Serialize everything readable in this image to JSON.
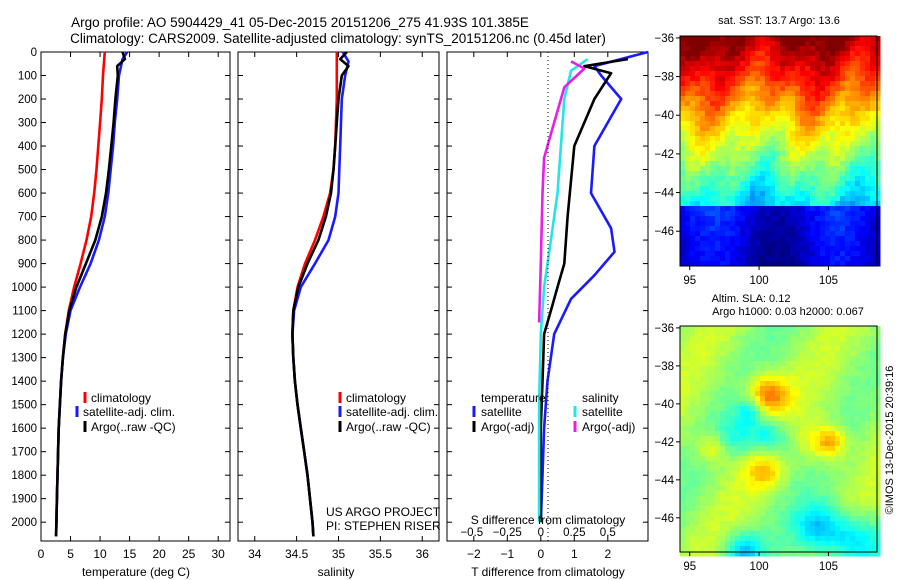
{
  "header": {
    "title_line1": "Argo profile: AO 5904429_41 05-Dec-2015 20151206_275 41.93S 101.385E",
    "title_line2": "Climatology: CARS2009. Satellite-adjusted climatology: synTS_20151206.nc (0.45d later)"
  },
  "colors": {
    "climatology": "#ff0000",
    "satellite": "#1a1aff",
    "argo": "#000000",
    "sat_salinity": "#22e6e6",
    "argo_salinity": "#e61ee6"
  },
  "credit": {
    "project": "US ARGO PROJECT",
    "pi": "PI: STEPHEN RISER"
  },
  "stamp": "©IMOS 13-Dec-2015 20:39:16",
  "legend": {
    "climatology": "climatology",
    "satellite": "satellite-adj. clim.",
    "argo": "Argo(..raw -QC)"
  },
  "legend_diff": {
    "temp_head": "temperature",
    "sal_head": "salinity",
    "satellite": "satellite",
    "argo": "Argo(-adj)"
  },
  "chart_data": [
    {
      "type": "line",
      "xlabel": "temperature (deg C)",
      "xlim": [
        0,
        32
      ],
      "ylim": [
        2080,
        0
      ],
      "xticks": [
        0,
        5,
        10,
        15,
        20,
        25,
        30
      ],
      "yticks": [
        0,
        100,
        200,
        300,
        400,
        500,
        600,
        700,
        800,
        900,
        1000,
        1100,
        1200,
        1300,
        1400,
        1500,
        1600,
        1700,
        1800,
        1900,
        2000
      ],
      "series": [
        {
          "name": "climatology",
          "color": "#ff0000",
          "points": [
            [
              10.8,
              0
            ],
            [
              10.5,
              100
            ],
            [
              10.3,
              200
            ],
            [
              10.0,
              300
            ],
            [
              9.7,
              400
            ],
            [
              9.4,
              500
            ],
            [
              9.0,
              600
            ],
            [
              8.5,
              700
            ],
            [
              7.7,
              800
            ],
            [
              6.7,
              900
            ],
            [
              5.6,
              1000
            ],
            [
              4.7,
              1100
            ],
            [
              4.1,
              1200
            ],
            [
              3.7,
              1300
            ],
            [
              3.4,
              1400
            ],
            [
              3.2,
              1500
            ],
            [
              3.0,
              1600
            ],
            [
              2.9,
              1700
            ],
            [
              2.8,
              1800
            ],
            [
              2.7,
              1900
            ],
            [
              2.6,
              2000
            ],
            [
              2.55,
              2060
            ]
          ]
        },
        {
          "name": "satellite-adj. clim.",
          "color": "#1a1aff",
          "points": [
            [
              14.6,
              0
            ],
            [
              13.8,
              30
            ],
            [
              13.2,
              100
            ],
            [
              12.9,
              200
            ],
            [
              12.5,
              300
            ],
            [
              12.2,
              400
            ],
            [
              11.8,
              500
            ],
            [
              11.4,
              600
            ],
            [
              10.8,
              700
            ],
            [
              9.8,
              800
            ],
            [
              8.4,
              900
            ],
            [
              6.6,
              1000
            ],
            [
              5.0,
              1100
            ],
            [
              4.2,
              1200
            ],
            [
              3.7,
              1300
            ],
            [
              3.4,
              1400
            ],
            [
              3.2,
              1500
            ],
            [
              3.0,
              1600
            ],
            [
              2.9,
              1700
            ],
            [
              2.8,
              1800
            ],
            [
              2.7,
              1900
            ],
            [
              2.6,
              2000
            ],
            [
              2.55,
              2060
            ]
          ]
        },
        {
          "name": "Argo(..raw -QC)",
          "color": "#000000",
          "points": [
            [
              13.8,
              0
            ],
            [
              14.2,
              30
            ],
            [
              12.9,
              60
            ],
            [
              13.0,
              100
            ],
            [
              12.6,
              200
            ],
            [
              12.3,
              300
            ],
            [
              11.9,
              400
            ],
            [
              11.5,
              500
            ],
            [
              11.0,
              600
            ],
            [
              10.3,
              700
            ],
            [
              9.2,
              800
            ],
            [
              7.6,
              900
            ],
            [
              6.0,
              1000
            ],
            [
              4.8,
              1100
            ],
            [
              4.1,
              1200
            ],
            [
              3.7,
              1300
            ],
            [
              3.4,
              1400
            ],
            [
              3.2,
              1500
            ],
            [
              3.0,
              1600
            ],
            [
              2.9,
              1700
            ],
            [
              2.8,
              1800
            ],
            [
              2.7,
              1900
            ],
            [
              2.6,
              2000
            ],
            [
              2.55,
              2060
            ]
          ]
        }
      ]
    },
    {
      "type": "line",
      "xlabel": "salinity",
      "xlim": [
        33.8,
        36.2
      ],
      "ylim": [
        2080,
        0
      ],
      "xticks": [
        34,
        34.5,
        35,
        35.5,
        36
      ],
      "yticks": [
        0,
        100,
        200,
        300,
        400,
        500,
        600,
        700,
        800,
        900,
        1000,
        1100,
        1200,
        1300,
        1400,
        1500,
        1600,
        1700,
        1800,
        1900,
        2000
      ],
      "series": [
        {
          "name": "climatology",
          "color": "#ff0000",
          "points": [
            [
              34.98,
              0
            ],
            [
              34.98,
              100
            ],
            [
              34.98,
              200
            ],
            [
              34.97,
              300
            ],
            [
              34.96,
              400
            ],
            [
              34.94,
              500
            ],
            [
              34.9,
              600
            ],
            [
              34.82,
              700
            ],
            [
              34.72,
              800
            ],
            [
              34.6,
              900
            ],
            [
              34.51,
              1000
            ],
            [
              34.46,
              1100
            ],
            [
              34.45,
              1200
            ],
            [
              34.46,
              1300
            ],
            [
              34.48,
              1400
            ],
            [
              34.51,
              1500
            ],
            [
              34.55,
              1600
            ],
            [
              34.59,
              1700
            ],
            [
              34.63,
              1800
            ],
            [
              34.66,
              1900
            ],
            [
              34.69,
              2000
            ],
            [
              34.7,
              2060
            ]
          ]
        },
        {
          "name": "satellite-adj. clim.",
          "color": "#1a1aff",
          "points": [
            [
              35.05,
              0
            ],
            [
              35.12,
              40
            ],
            [
              35.08,
              100
            ],
            [
              35.04,
              200
            ],
            [
              35.03,
              300
            ],
            [
              35.02,
              400
            ],
            [
              35.01,
              500
            ],
            [
              35.0,
              600
            ],
            [
              34.96,
              700
            ],
            [
              34.88,
              800
            ],
            [
              34.72,
              900
            ],
            [
              34.55,
              1000
            ],
            [
              34.47,
              1100
            ],
            [
              34.45,
              1200
            ],
            [
              34.46,
              1300
            ],
            [
              34.48,
              1400
            ],
            [
              34.51,
              1500
            ],
            [
              34.55,
              1600
            ],
            [
              34.59,
              1700
            ],
            [
              34.63,
              1800
            ],
            [
              34.66,
              1900
            ],
            [
              34.69,
              2000
            ],
            [
              34.7,
              2060
            ]
          ]
        },
        {
          "name": "Argo(..raw -QC)",
          "color": "#000000",
          "points": [
            [
              35.1,
              0
            ],
            [
              35.02,
              30
            ],
            [
              35.12,
              60
            ],
            [
              35.04,
              100
            ],
            [
              35.0,
              200
            ],
            [
              34.98,
              300
            ],
            [
              34.96,
              400
            ],
            [
              34.94,
              500
            ],
            [
              34.91,
              600
            ],
            [
              34.85,
              700
            ],
            [
              34.76,
              800
            ],
            [
              34.63,
              900
            ],
            [
              34.52,
              1000
            ],
            [
              34.46,
              1100
            ],
            [
              34.45,
              1200
            ],
            [
              34.46,
              1300
            ],
            [
              34.48,
              1400
            ],
            [
              34.51,
              1500
            ],
            [
              34.55,
              1600
            ],
            [
              34.59,
              1700
            ],
            [
              34.63,
              1800
            ],
            [
              34.66,
              1900
            ],
            [
              34.69,
              2000
            ],
            [
              34.7,
              2060
            ]
          ]
        }
      ]
    },
    {
      "type": "line",
      "xlabel": "T difference from climatology",
      "x2label": "S difference from climatology",
      "xlim": [
        -2.8,
        3.2
      ],
      "ylim": [
        2080,
        0
      ],
      "xticks": [
        -2,
        -1,
        0,
        1,
        2
      ],
      "x2ticks": [
        "-0.5",
        "-0.25",
        "0",
        "0.25",
        "0.5"
      ],
      "yticks": [
        0,
        100,
        200,
        300,
        400,
        500,
        600,
        700,
        800,
        900,
        1000,
        1100,
        1200,
        1300,
        1400,
        1500,
        1600,
        1700,
        1800,
        1900,
        2000
      ],
      "series": [
        {
          "name": "temperature satellite",
          "color": "#1a1aff",
          "points": [
            [
              3.5,
              0
            ],
            [
              1.6,
              60
            ],
            [
              1.8,
              100
            ],
            [
              2.4,
              200
            ],
            [
              1.6,
              400
            ],
            [
              1.5,
              600
            ],
            [
              2.1,
              750
            ],
            [
              2.2,
              850
            ],
            [
              1.6,
              950
            ],
            [
              0.9,
              1050
            ],
            [
              0.4,
              1200
            ],
            [
              0.2,
              1400
            ],
            [
              0.1,
              1600
            ],
            [
              0.05,
              1800
            ],
            [
              0.0,
              2000
            ]
          ]
        },
        {
          "name": "temperature Argo(-adj)",
          "color": "#000000",
          "points": [
            [
              2.6,
              30
            ],
            [
              1.3,
              60
            ],
            [
              2.1,
              90
            ],
            [
              1.6,
              200
            ],
            [
              1.0,
              400
            ],
            [
              0.8,
              700
            ],
            [
              0.7,
              900
            ],
            [
              0.5,
              1000
            ],
            [
              0.3,
              1100
            ],
            [
              0.1,
              1200
            ],
            [
              0.05,
              1400
            ],
            [
              0.0,
              1600
            ],
            [
              0.0,
              1800
            ],
            [
              0.0,
              2000
            ]
          ]
        },
        {
          "name": "salinity satellite",
          "color": "#22e6e6",
          "points": [
            [
              1.4,
              30
            ],
            [
              0.9,
              80
            ],
            [
              0.7,
              200
            ],
            [
              0.6,
              400
            ],
            [
              0.5,
              600
            ],
            [
              0.3,
              800
            ],
            [
              0.1,
              1000
            ],
            [
              0.0,
              1200
            ],
            [
              -0.05,
              1500
            ],
            [
              -0.05,
              1800
            ],
            [
              -0.05,
              2000
            ]
          ]
        },
        {
          "name": "salinity Argo(-adj)",
          "color": "#e61ee6",
          "points": [
            [
              0.9,
              40
            ],
            [
              1.3,
              70
            ],
            [
              0.7,
              150
            ],
            [
              0.4,
              300
            ],
            [
              0.1,
              450
            ],
            [
              0.05,
              600
            ],
            [
              0.0,
              900
            ],
            [
              -0.05,
              1150
            ]
          ]
        }
      ]
    },
    {
      "type": "heatmap",
      "title": "sat. SST: 13.7 Argo: 13.6",
      "xticks": [
        95,
        100,
        105
      ],
      "yticks": [
        -36,
        -38,
        -40,
        -42,
        -44,
        -46
      ]
    },
    {
      "type": "heatmap",
      "title_line1": "Altim. SLA: 0.12",
      "title_line2": "Argo h1000: 0.03 h2000: 0.067",
      "xticks": [
        95,
        100,
        105
      ],
      "yticks": [
        -36,
        -38,
        -40,
        -42,
        -44,
        -46
      ]
    }
  ]
}
